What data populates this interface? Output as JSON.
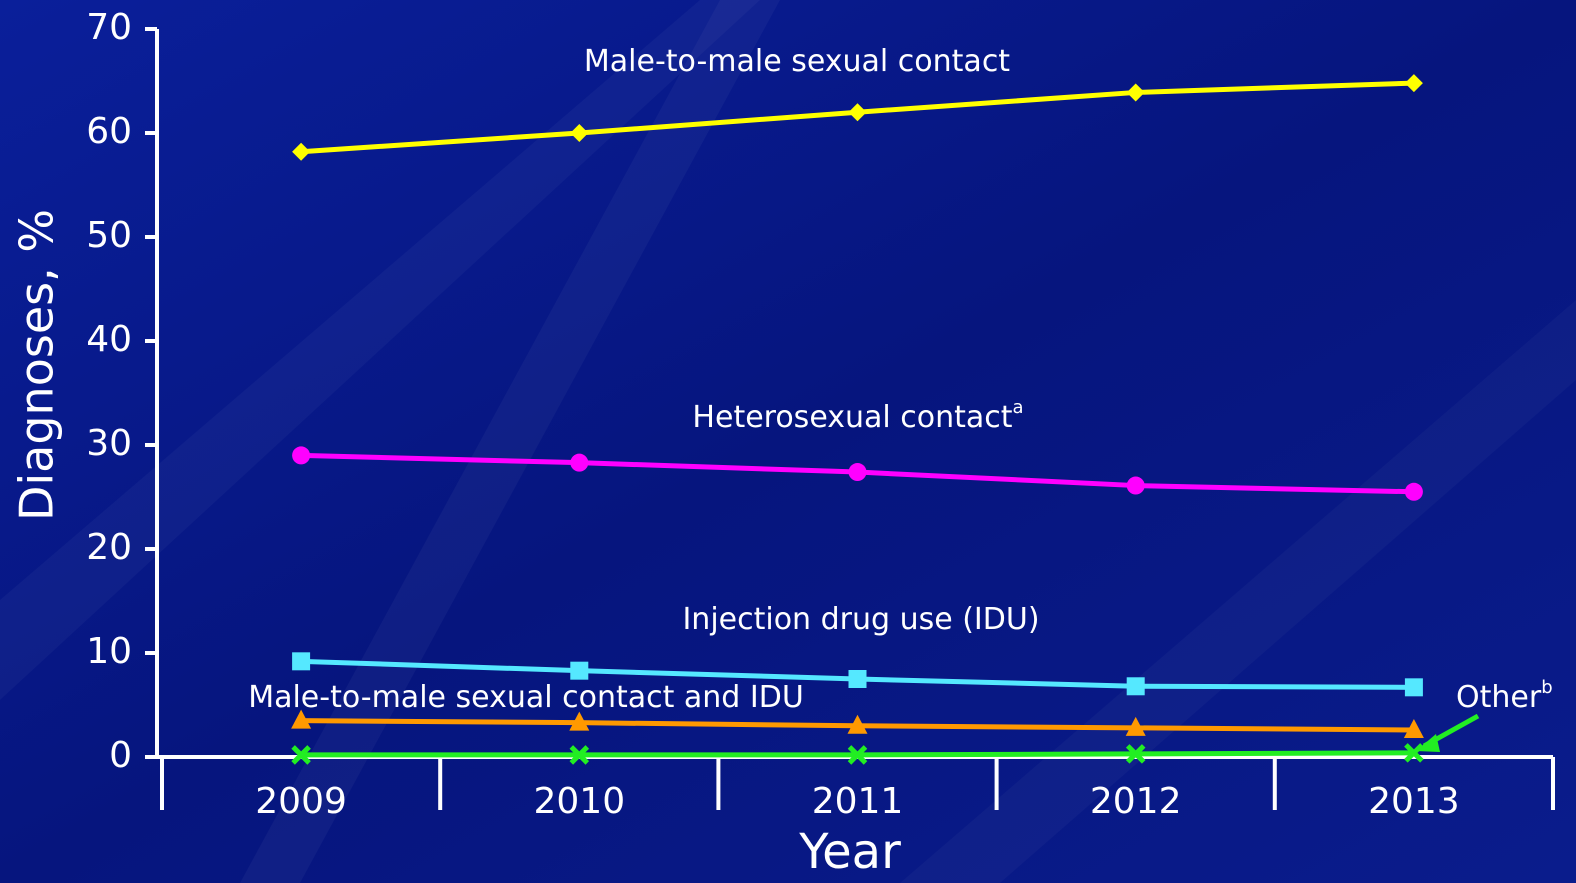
{
  "chart_data": {
    "type": "line",
    "x_label": "Year",
    "y_label": "Diagnoses, %",
    "categories": [
      "2009",
      "2010",
      "2011",
      "2012",
      "2013"
    ],
    "ylim": [
      0,
      70
    ],
    "yticks": [
      0,
      10,
      20,
      30,
      40,
      50,
      60,
      70
    ],
    "series": [
      {
        "name": "Male-to-male sexual contact",
        "color": "#ffff00",
        "marker": "diamond",
        "values": [
          58.2,
          60.0,
          62.0,
          63.9,
          64.8
        ]
      },
      {
        "name": "Heterosexual contact",
        "footnote": "a",
        "color": "#ff00ff",
        "marker": "circle",
        "values": [
          29.0,
          28.3,
          27.4,
          26.1,
          25.5
        ]
      },
      {
        "name": "Injection drug use (IDU)",
        "color": "#55e8ff",
        "marker": "square",
        "values": [
          9.2,
          8.3,
          7.5,
          6.8,
          6.7
        ]
      },
      {
        "name": "Male-to-male sexual contact and IDU",
        "color": "#ff9900",
        "marker": "triangle",
        "values": [
          3.5,
          3.3,
          3.0,
          2.8,
          2.6
        ]
      },
      {
        "name": "Other",
        "footnote": "b",
        "color": "#22ee22",
        "marker": "x",
        "values": [
          0.2,
          0.2,
          0.2,
          0.3,
          0.4
        ]
      }
    ]
  }
}
